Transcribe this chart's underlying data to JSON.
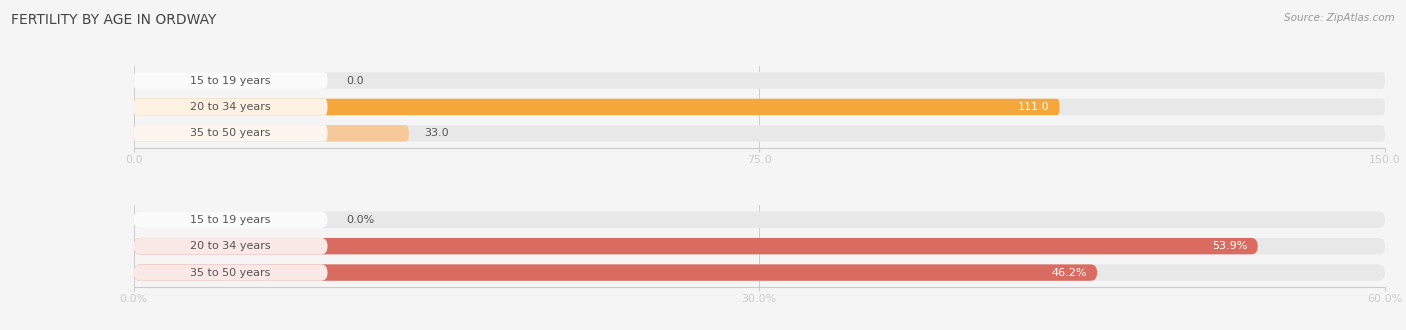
{
  "title": "FERTILITY BY AGE IN ORDWAY",
  "source": "Source: ZipAtlas.com",
  "top_chart": {
    "categories": [
      "15 to 19 years",
      "20 to 34 years",
      "35 to 50 years"
    ],
    "values": [
      0.0,
      111.0,
      33.0
    ],
    "bar_colors": [
      "#f5ba84",
      "#f5a73c",
      "#f5c99a"
    ],
    "label_bg_colors": [
      "#f5d5b8",
      "#f5b86a",
      "#f5d5b8"
    ],
    "xlim": [
      0,
      150
    ],
    "xticks": [
      0.0,
      75.0,
      150.0
    ],
    "xtick_labels": [
      "0.0",
      "75.0",
      "150.0"
    ]
  },
  "bottom_chart": {
    "categories": [
      "15 to 19 years",
      "20 to 34 years",
      "35 to 50 years"
    ],
    "values": [
      0.0,
      53.9,
      46.2
    ],
    "bar_colors": [
      "#e8938a",
      "#d96b60",
      "#d96b60"
    ],
    "label_bg_colors": [
      "#edb5b0",
      "#d96b60",
      "#d96b60"
    ],
    "xlim": [
      0,
      60
    ],
    "xticks": [
      0.0,
      30.0,
      60.0
    ],
    "xtick_labels": [
      "0.0%",
      "30.0%",
      "60.0%"
    ]
  },
  "bg_color": "#f5f5f5",
  "bar_bg_color": "#e8e8e8",
  "label_color": "#555555",
  "title_color": "#444444",
  "source_color": "#999999",
  "bar_height": 0.62,
  "label_fontsize": 8.0,
  "value_fontsize": 8.0,
  "title_fontsize": 10,
  "source_fontsize": 7.5
}
